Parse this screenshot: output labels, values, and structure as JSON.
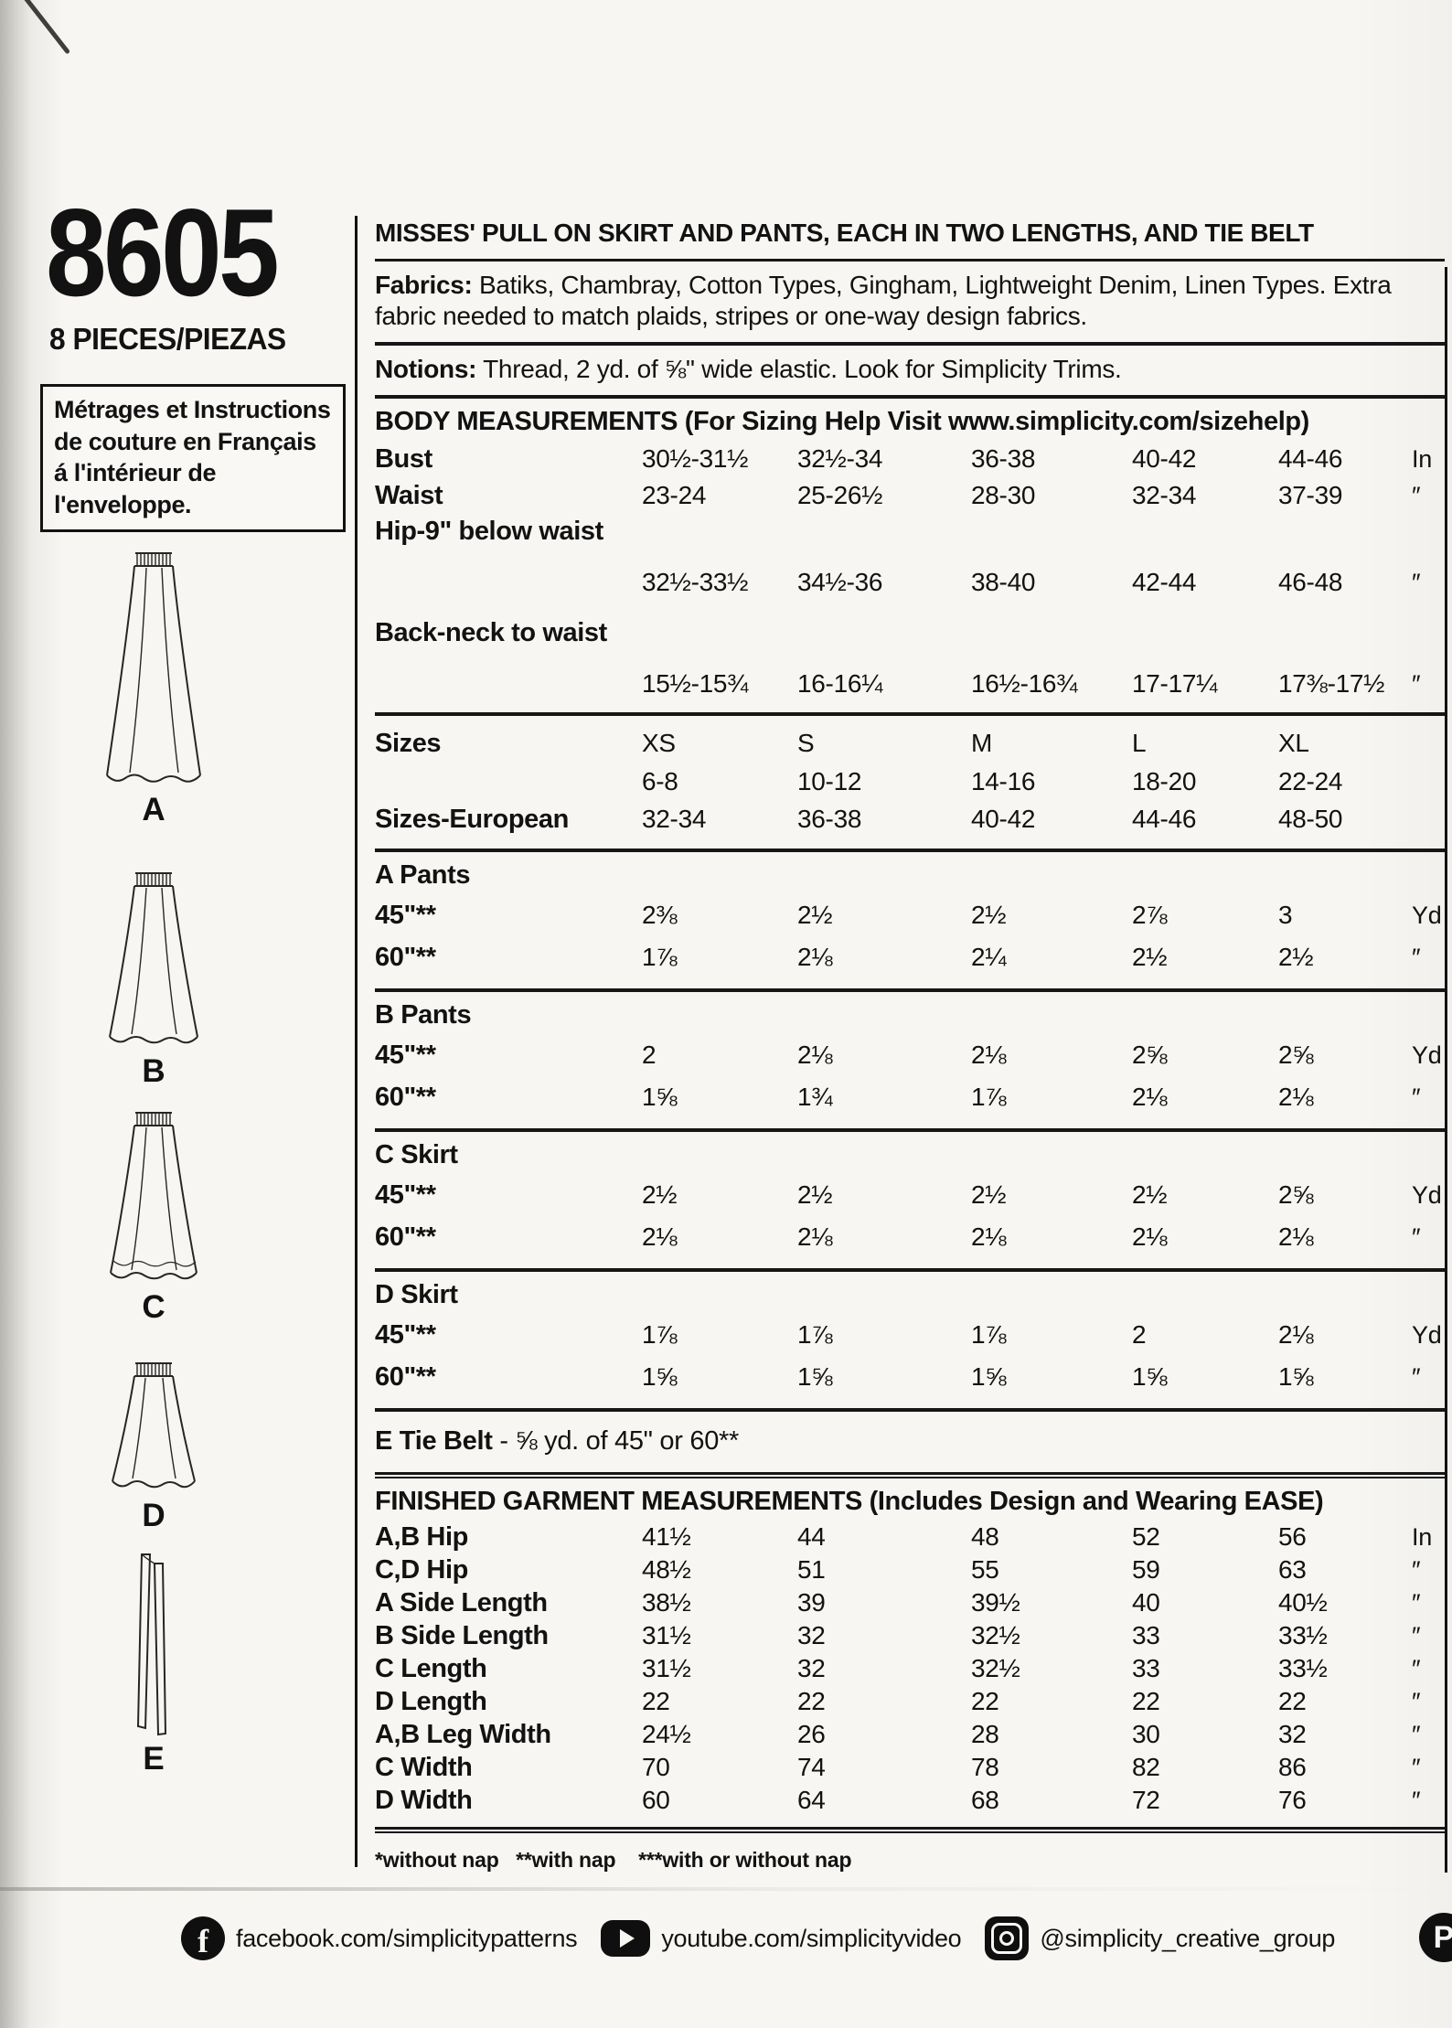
{
  "left_panel": {
    "pattern_number": "8605",
    "pieces_label": "8 PIECES/PIEZAS",
    "french_note_lines": [
      "Métrages et Instructions",
      "de couture en Français",
      "á l'intérieur de",
      "l'enveloppe."
    ],
    "figure_labels": [
      "A",
      "B",
      "C",
      "D",
      "E"
    ]
  },
  "header": {
    "title": "MISSES' PULL ON SKIRT AND PANTS, EACH IN TWO LENGTHS, AND TIE BELT",
    "fabrics_label": "Fabrics:",
    "fabrics_text": " Batiks, Chambray, Cotton Types, Gingham, Lightweight Denim, Linen Types. Extra fabric needed to match plaids, stripes or one-way design fabrics.",
    "notions_label": "Notions:",
    "notions_text": " Thread, 2 yd. of ⅝\" wide elastic. Look for Simplicity Trims."
  },
  "body_measurements": {
    "heading": "BODY MEASUREMENTS (For Sizing Help Visit www.simplicity.com/sizehelp)",
    "rows": [
      {
        "label": "Bust",
        "cells": [
          "30½-31½",
          "32½-34",
          "36-38",
          "40-42",
          "44-46"
        ],
        "unit": "In"
      },
      {
        "label": "Waist",
        "cells": [
          "23-24",
          "25-26½",
          "28-30",
          "32-34",
          "37-39"
        ],
        "unit": "″"
      },
      {
        "label": "Hip-9\" below waist",
        "cells": [
          "",
          "",
          "",
          "",
          ""
        ],
        "unit": ""
      },
      {
        "label": "",
        "cells": [
          "32½-33½",
          "34½-36",
          "38-40",
          "42-44",
          "46-48"
        ],
        "unit": "″",
        "gap": true
      },
      {
        "label": "Back-neck to waist",
        "cells": [
          "",
          "",
          "",
          "",
          ""
        ],
        "unit": "",
        "gap": true
      },
      {
        "label": "",
        "cells": [
          "15½-15¾",
          "16-16¼",
          "16½-16¾",
          "17-17¼",
          "17⅜-17½"
        ],
        "unit": "″",
        "gap": true
      }
    ]
  },
  "sizes": {
    "rows": [
      {
        "label": "Sizes",
        "cells": [
          "XS",
          "S",
          "M",
          "L",
          "XL"
        ],
        "unit": ""
      },
      {
        "label": "",
        "cells": [
          "6-8",
          "10-12",
          "14-16",
          "18-20",
          "22-24"
        ],
        "unit": ""
      },
      {
        "label": "Sizes-European",
        "cells": [
          "32-34",
          "36-38",
          "40-42",
          "44-46",
          "48-50"
        ],
        "unit": ""
      }
    ]
  },
  "yardage": [
    {
      "heading": "A Pants",
      "rows": [
        {
          "label": "45\"**",
          "cells": [
            "2⅜",
            "2½",
            "2½",
            "2⅞",
            "3"
          ],
          "unit": "Yd"
        },
        {
          "label": "60\"**",
          "cells": [
            "1⅞",
            "2⅛",
            "2¼",
            "2½",
            "2½"
          ],
          "unit": "″"
        }
      ]
    },
    {
      "heading": "B Pants",
      "rows": [
        {
          "label": "45\"**",
          "cells": [
            "2",
            "2⅛",
            "2⅛",
            "2⅝",
            "2⅝"
          ],
          "unit": "Yd"
        },
        {
          "label": "60\"**",
          "cells": [
            "1⅝",
            "1¾",
            "1⅞",
            "2⅛",
            "2⅛"
          ],
          "unit": "″"
        }
      ]
    },
    {
      "heading": "C Skirt",
      "rows": [
        {
          "label": "45\"**",
          "cells": [
            "2½",
            "2½",
            "2½",
            "2½",
            "2⅝"
          ],
          "unit": "Yd"
        },
        {
          "label": "60\"**",
          "cells": [
            "2⅛",
            "2⅛",
            "2⅛",
            "2⅛",
            "2⅛"
          ],
          "unit": "″"
        }
      ]
    },
    {
      "heading": "D Skirt",
      "rows": [
        {
          "label": "45\"**",
          "cells": [
            "1⅞",
            "1⅞",
            "1⅞",
            "2",
            "2⅛"
          ],
          "unit": "Yd"
        },
        {
          "label": "60\"**",
          "cells": [
            "1⅝",
            "1⅝",
            "1⅝",
            "1⅝",
            "1⅝"
          ],
          "unit": "″"
        }
      ]
    }
  ],
  "tie_belt": {
    "label": "E Tie Belt",
    "text": " - ⅝ yd.  of 45\" or 60**"
  },
  "finished": {
    "heading": "FINISHED GARMENT MEASUREMENTS (Includes Design and Wearing EASE)",
    "rows": [
      {
        "label": "A,B Hip",
        "cells": [
          "41½",
          "44",
          "48",
          "52",
          "56"
        ],
        "unit": "In"
      },
      {
        "label": "C,D Hip",
        "cells": [
          "48½",
          "51",
          "55",
          "59",
          "63"
        ],
        "unit": "″"
      },
      {
        "label": "A Side Length",
        "cells": [
          "38½",
          "39",
          "39½",
          "40",
          "40½"
        ],
        "unit": "″"
      },
      {
        "label": "B Side Length",
        "cells": [
          "31½",
          "32",
          "32½",
          "33",
          "33½"
        ],
        "unit": "″"
      },
      {
        "label": "C Length",
        "cells": [
          "31½",
          "32",
          "32½",
          "33",
          "33½"
        ],
        "unit": "″"
      },
      {
        "label": "D Length",
        "cells": [
          "22",
          "22",
          "22",
          "22",
          "22"
        ],
        "unit": "″"
      },
      {
        "label": "A,B Leg Width",
        "cells": [
          "24½",
          "26",
          "28",
          "30",
          "32"
        ],
        "unit": "″"
      },
      {
        "label": "C Width",
        "cells": [
          "70",
          "74",
          "78",
          "82",
          "86"
        ],
        "unit": "″"
      },
      {
        "label": "D Width",
        "cells": [
          "60",
          "64",
          "68",
          "72",
          "76"
        ],
        "unit": "″"
      }
    ]
  },
  "footnotes": "*without nap   **with nap    ***with or without nap",
  "social": {
    "facebook_glyph": "f",
    "facebook": "facebook.com/simplicitypatterns",
    "youtube": "youtube.com/simplicityvideo",
    "instagram": "@simplicity_creative_group",
    "pinterest_glyph": "P"
  }
}
